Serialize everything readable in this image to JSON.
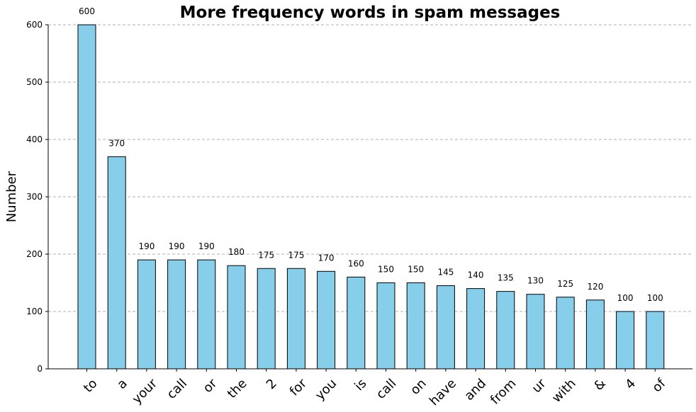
{
  "chart_data": {
    "type": "bar",
    "title": "More frequency words in spam messages",
    "xlabel": "",
    "ylabel": "Number",
    "categories": [
      "to",
      "a",
      "your",
      "call",
      "or",
      "the",
      "2",
      "for",
      "you",
      "is",
      "call",
      "on",
      "have",
      "and",
      "from",
      "ur",
      "with",
      "&",
      "4",
      "of"
    ],
    "values": [
      600,
      370,
      190,
      190,
      190,
      180,
      175,
      175,
      170,
      160,
      150,
      150,
      145,
      140,
      135,
      130,
      125,
      120,
      100,
      100
    ],
    "ylim": [
      0,
      600
    ],
    "yticks": [
      0,
      100,
      200,
      300,
      400,
      500,
      600
    ],
    "grid": "y-dashed",
    "bar_color": "#87CEEB",
    "bar_edge_color": "#000000",
    "grid_color": "#b0b0b0",
    "data_labels": true
  }
}
